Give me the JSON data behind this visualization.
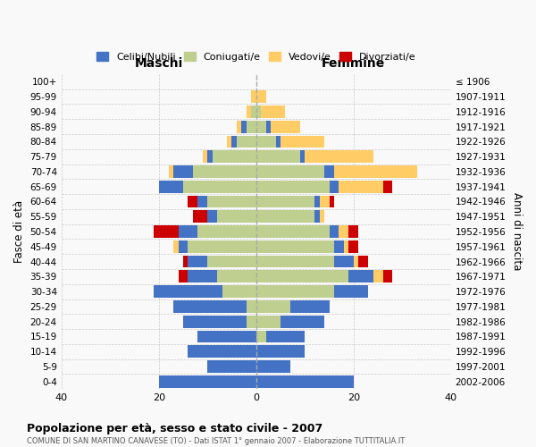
{
  "age_groups": [
    "0-4",
    "5-9",
    "10-14",
    "15-19",
    "20-24",
    "25-29",
    "30-34",
    "35-39",
    "40-44",
    "45-49",
    "50-54",
    "55-59",
    "60-64",
    "65-69",
    "70-74",
    "75-79",
    "80-84",
    "85-89",
    "90-94",
    "95-99",
    "100+"
  ],
  "birth_years": [
    "2002-2006",
    "1997-2001",
    "1992-1996",
    "1987-1991",
    "1982-1986",
    "1977-1981",
    "1972-1976",
    "1967-1971",
    "1962-1966",
    "1957-1961",
    "1952-1956",
    "1947-1951",
    "1942-1946",
    "1937-1941",
    "1932-1936",
    "1927-1931",
    "1922-1926",
    "1917-1921",
    "1912-1916",
    "1907-1911",
    "≤ 1906"
  ],
  "maschi": {
    "celibi": [
      20,
      10,
      14,
      12,
      13,
      15,
      14,
      6,
      4,
      2,
      4,
      2,
      2,
      5,
      4,
      1,
      1,
      1,
      0,
      0,
      0
    ],
    "coniugati": [
      0,
      0,
      0,
      0,
      2,
      2,
      7,
      8,
      10,
      14,
      12,
      8,
      10,
      15,
      13,
      9,
      4,
      2,
      1,
      0,
      0
    ],
    "vedovi": [
      0,
      0,
      0,
      0,
      0,
      0,
      0,
      0,
      0,
      1,
      0,
      0,
      0,
      0,
      1,
      1,
      1,
      1,
      1,
      1,
      0
    ],
    "divorziati": [
      0,
      0,
      0,
      0,
      0,
      0,
      0,
      2,
      1,
      0,
      5,
      3,
      2,
      0,
      0,
      0,
      0,
      0,
      0,
      0,
      0
    ]
  },
  "femmine": {
    "nubili": [
      20,
      7,
      10,
      8,
      9,
      8,
      7,
      5,
      4,
      2,
      2,
      1,
      1,
      2,
      2,
      1,
      1,
      1,
      0,
      0,
      0
    ],
    "coniugate": [
      0,
      0,
      0,
      2,
      5,
      7,
      16,
      19,
      16,
      16,
      15,
      12,
      12,
      15,
      14,
      9,
      4,
      2,
      1,
      0,
      0
    ],
    "vedove": [
      0,
      0,
      0,
      0,
      0,
      0,
      0,
      2,
      1,
      1,
      2,
      1,
      2,
      9,
      17,
      14,
      9,
      6,
      5,
      2,
      0
    ],
    "divorziate": [
      0,
      0,
      0,
      0,
      0,
      0,
      0,
      2,
      2,
      2,
      2,
      0,
      1,
      2,
      0,
      0,
      0,
      0,
      0,
      0,
      0
    ]
  },
  "colors": {
    "celibi": "#4472C4",
    "coniugati": "#BFCF8F",
    "vedovi": "#FFCC66",
    "divorziati": "#CC0000"
  },
  "xlim": 40,
  "title": "Popolazione per età, sesso e stato civile - 2007",
  "subtitle": "COMUNE DI SAN MARTINO CANAVESE (TO) - Dati ISTAT 1° gennaio 2007 - Elaborazione TUTTITALIA.IT",
  "ylabel_left": "Fasce di età",
  "ylabel_right": "Anni di nascita",
  "xlabel_left": "Maschi",
  "xlabel_right": "Femmine",
  "background_color": "#f9f9f9",
  "grid_color": "#cccccc"
}
